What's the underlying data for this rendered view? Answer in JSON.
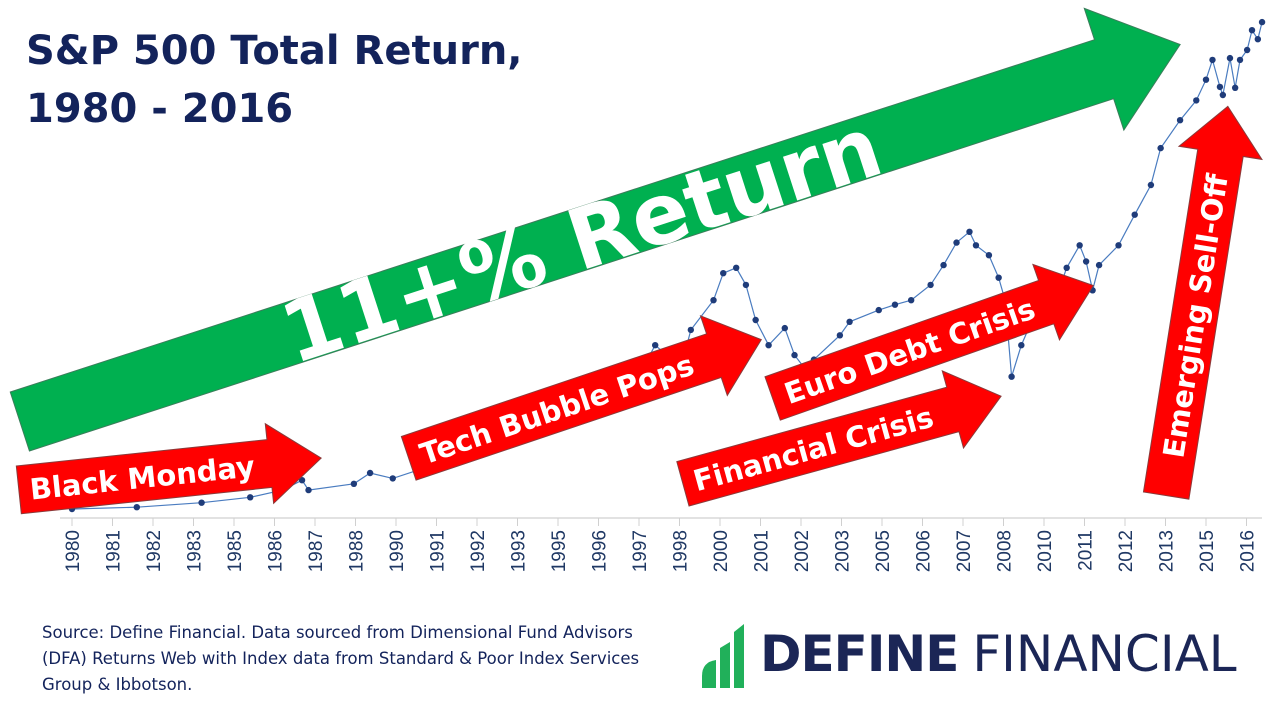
{
  "title": "S&P 500 Total Return,\n1980 - 2016",
  "source_note": "Source: Define Financial. Data sourced from Dimensional Fund Advisors (DFA) Returns Web with Index data from Standard & Poor Index Services Group & Ibbotson.",
  "logo": {
    "word1": "DEFINE",
    "word2": "FINANCIAL",
    "accent_color": "#21b05a",
    "text_color": "#1b2656"
  },
  "annotations": [
    {
      "label": "11+% Return",
      "color": "#00b050"
    },
    {
      "label": "Black Monday",
      "color": "#ff0000"
    },
    {
      "label": "Tech Bubble Pops",
      "color": "#ff0000"
    },
    {
      "label": "Euro Debt Crisis",
      "color": "#ff0000"
    },
    {
      "label": "Financial Crisis",
      "color": "#ff0000"
    },
    {
      "label": "Emerging Sell-Off",
      "color": "#ff0000"
    }
  ],
  "chart_data": {
    "type": "line",
    "title": "S&P 500 Total Return, 1980 - 2016",
    "xlabel": "",
    "ylabel": "",
    "y_axis_shown": false,
    "grid": false,
    "marker": "circle",
    "series_color": "#1f3c7a",
    "x_tick_labels": [
      "1980",
      "1981",
      "1982",
      "1983",
      "1985",
      "1986",
      "1987",
      "1988",
      "1990",
      "1991",
      "1992",
      "1993",
      "1995",
      "1996",
      "1997",
      "1998",
      "2000",
      "2001",
      "2002",
      "2003",
      "2005",
      "2006",
      "2007",
      "2008",
      "2010",
      "2011",
      "2012",
      "2013",
      "2015",
      "2016"
    ],
    "x": [
      1980.0,
      1982.0,
      1984.0,
      1985.5,
      1986.5,
      1987.1,
      1987.3,
      1988.7,
      1989.2,
      1989.9,
      1991.0,
      1993.0,
      1995.1,
      1996.5,
      1997.5,
      1998.0,
      1998.8,
      1999.1,
      1999.8,
      2000.1,
      2000.5,
      2000.8,
      2001.1,
      2001.5,
      2002.0,
      2002.3,
      2002.6,
      2002.9,
      2003.7,
      2004.0,
      2004.9,
      2005.4,
      2005.9,
      2006.5,
      2006.9,
      2007.3,
      2007.7,
      2007.9,
      2008.3,
      2008.6,
      2008.8,
      2009.0,
      2009.3,
      2009.9,
      2010.2,
      2010.4,
      2010.7,
      2011.1,
      2011.3,
      2011.5,
      2011.7,
      2012.3,
      2012.8,
      2013.3,
      2013.6,
      2014.2,
      2014.7,
      2015.0,
      2015.2,
      2015.43,
      2015.52,
      2015.74,
      2015.9,
      2016.05,
      2016.27,
      2016.42,
      2016.6,
      2016.73
    ],
    "y": [
      1.0,
      1.2,
      1.7,
      2.3,
      3.1,
      4.2,
      3.1,
      3.8,
      5.0,
      4.4,
      5.7,
      7.6,
      10.9,
      12.0,
      15.9,
      19.2,
      16.7,
      20.9,
      24.2,
      27.2,
      27.8,
      25.9,
      22.0,
      19.2,
      21.1,
      18.1,
      16.7,
      17.6,
      20.3,
      21.8,
      23.1,
      23.7,
      24.2,
      25.9,
      28.1,
      30.6,
      31.8,
      30.3,
      29.2,
      26.7,
      24.2,
      15.7,
      19.2,
      24.2,
      25.3,
      24.7,
      27.8,
      30.3,
      28.5,
      25.3,
      28.1,
      30.3,
      33.7,
      37.0,
      41.1,
      44.2,
      46.4,
      48.7,
      50.9,
      47.9,
      47.0,
      51.1,
      47.8,
      50.9,
      52.0,
      54.2,
      53.2,
      55.1
    ]
  }
}
